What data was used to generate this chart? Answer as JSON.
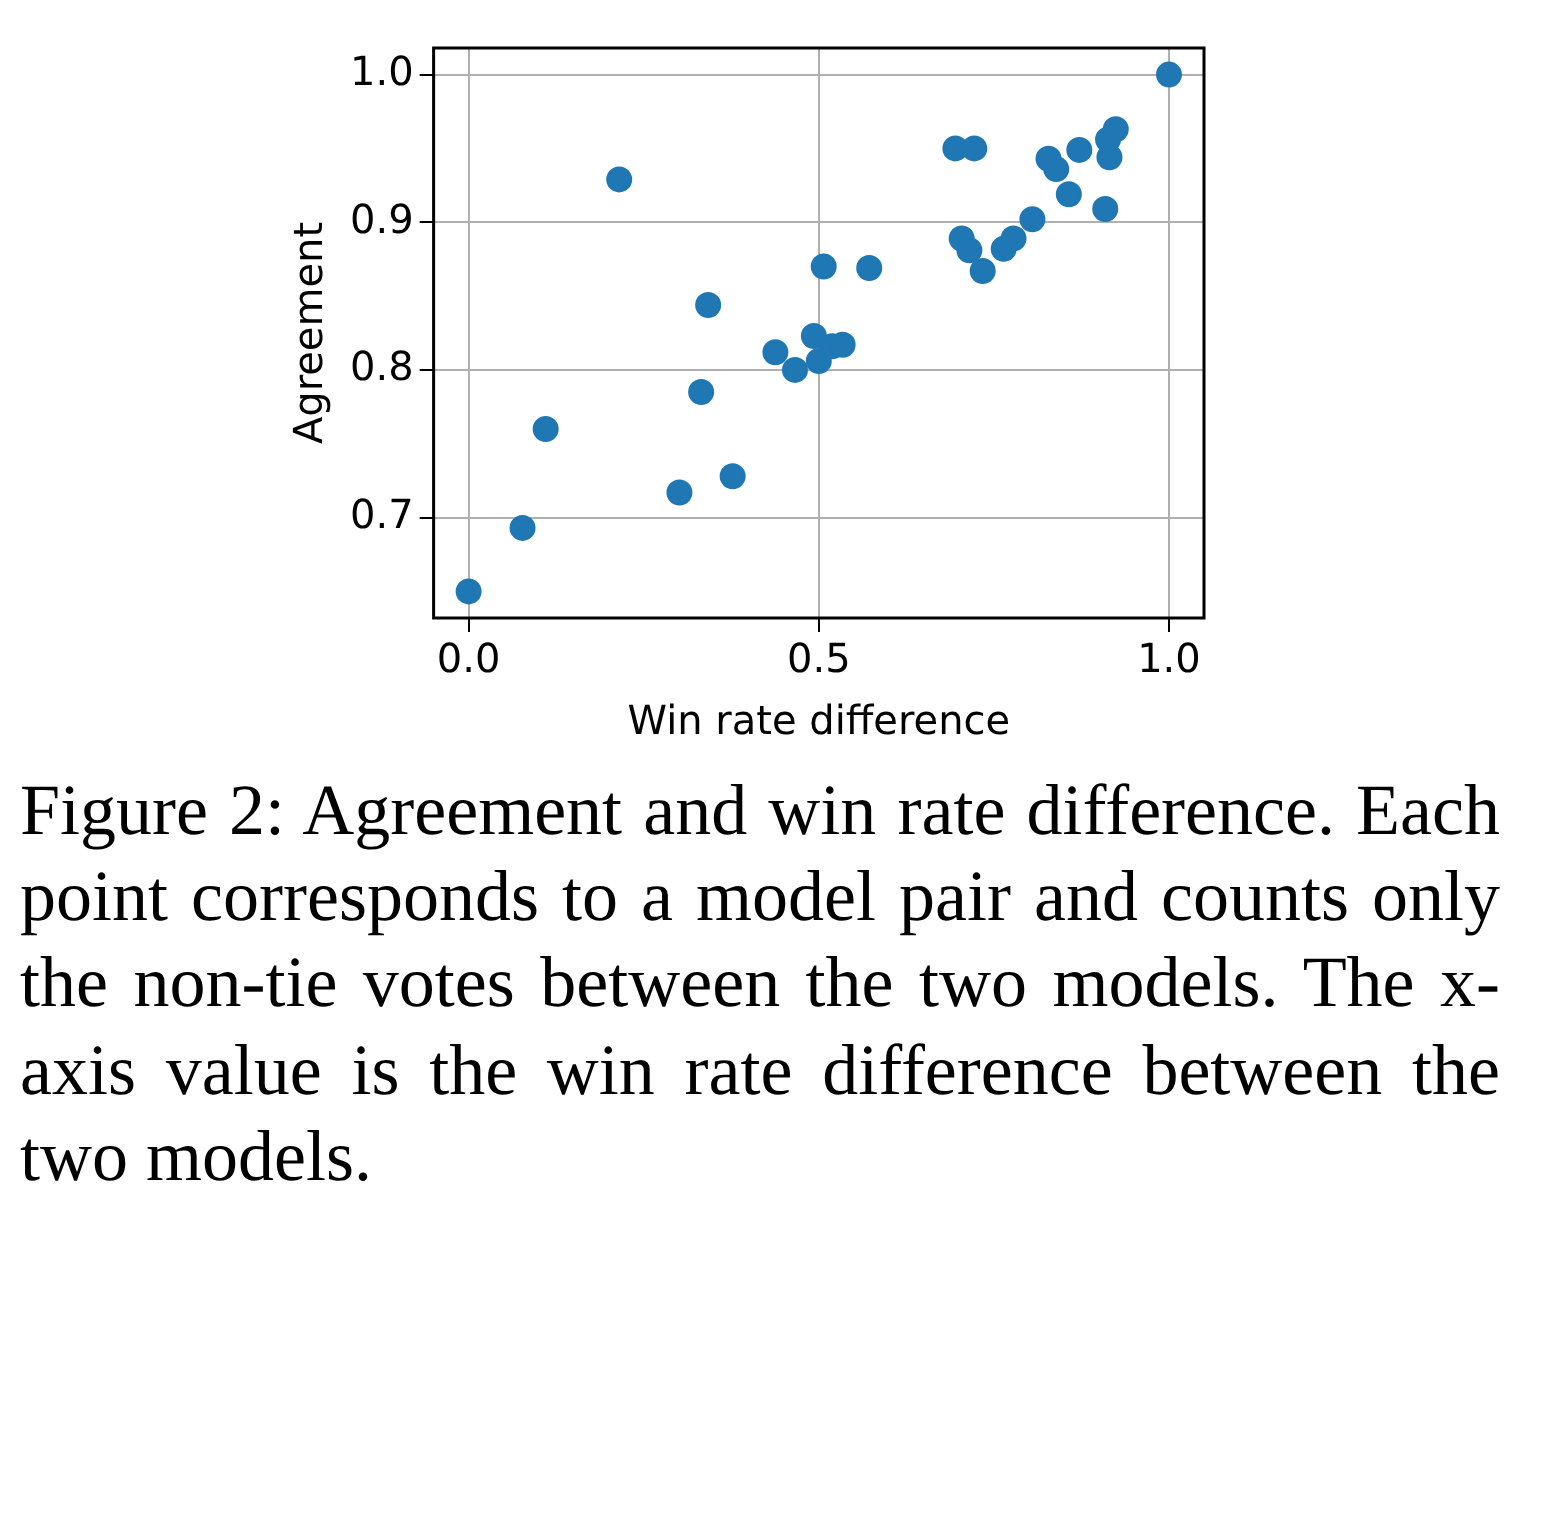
{
  "chart_data": {
    "type": "scatter",
    "xlabel": "Win rate difference",
    "ylabel": "Agreement",
    "x": [
      0,
      0.077,
      0.11,
      0.215,
      0.301,
      0.332,
      0.342,
      0.377,
      0.438,
      0.466,
      0.493,
      0.5,
      0.507,
      0.519,
      0.534,
      0.572,
      0.695,
      0.722,
      0.704,
      0.715,
      0.734,
      0.764,
      0.778,
      0.805,
      0.828,
      0.839,
      0.857,
      0.872,
      0.909,
      0.915,
      0.913,
      0.924,
      1.0
    ],
    "series": [
      {
        "color": "#1f77b4",
        "values": [
          0.65,
          0.693,
          0.76,
          0.929,
          0.717,
          0.785,
          0.844,
          0.728,
          0.812,
          0.8,
          0.823,
          0.806,
          0.87,
          0.816,
          0.817,
          0.869,
          0.95,
          0.95,
          0.889,
          0.881,
          0.867,
          0.882,
          0.889,
          0.902,
          0.943,
          0.936,
          0.919,
          0.949,
          0.909,
          0.944,
          0.956,
          0.963,
          1.0
        ]
      }
    ],
    "xlim": [
      -0.05,
      1.05
    ],
    "ylim": [
      0.632,
      1.018
    ],
    "xticks": [
      {
        "value": 0,
        "label": "0.0"
      },
      {
        "value": 0.5,
        "label": "0.5"
      },
      {
        "value": 1,
        "label": "1.0"
      }
    ],
    "yticks": [
      0.7,
      0.8,
      0.9,
      {
        "value": 1,
        "label": "1.0"
      }
    ],
    "grid": true,
    "marker": "circle",
    "legend": false,
    "annotations": [
      "Figure 2: Agreement and win rate difference. Each point corresponds to a model pair and counts only the non-tie votes between the two models. The x-axis value is the win rate difference between the two models."
    ]
  }
}
